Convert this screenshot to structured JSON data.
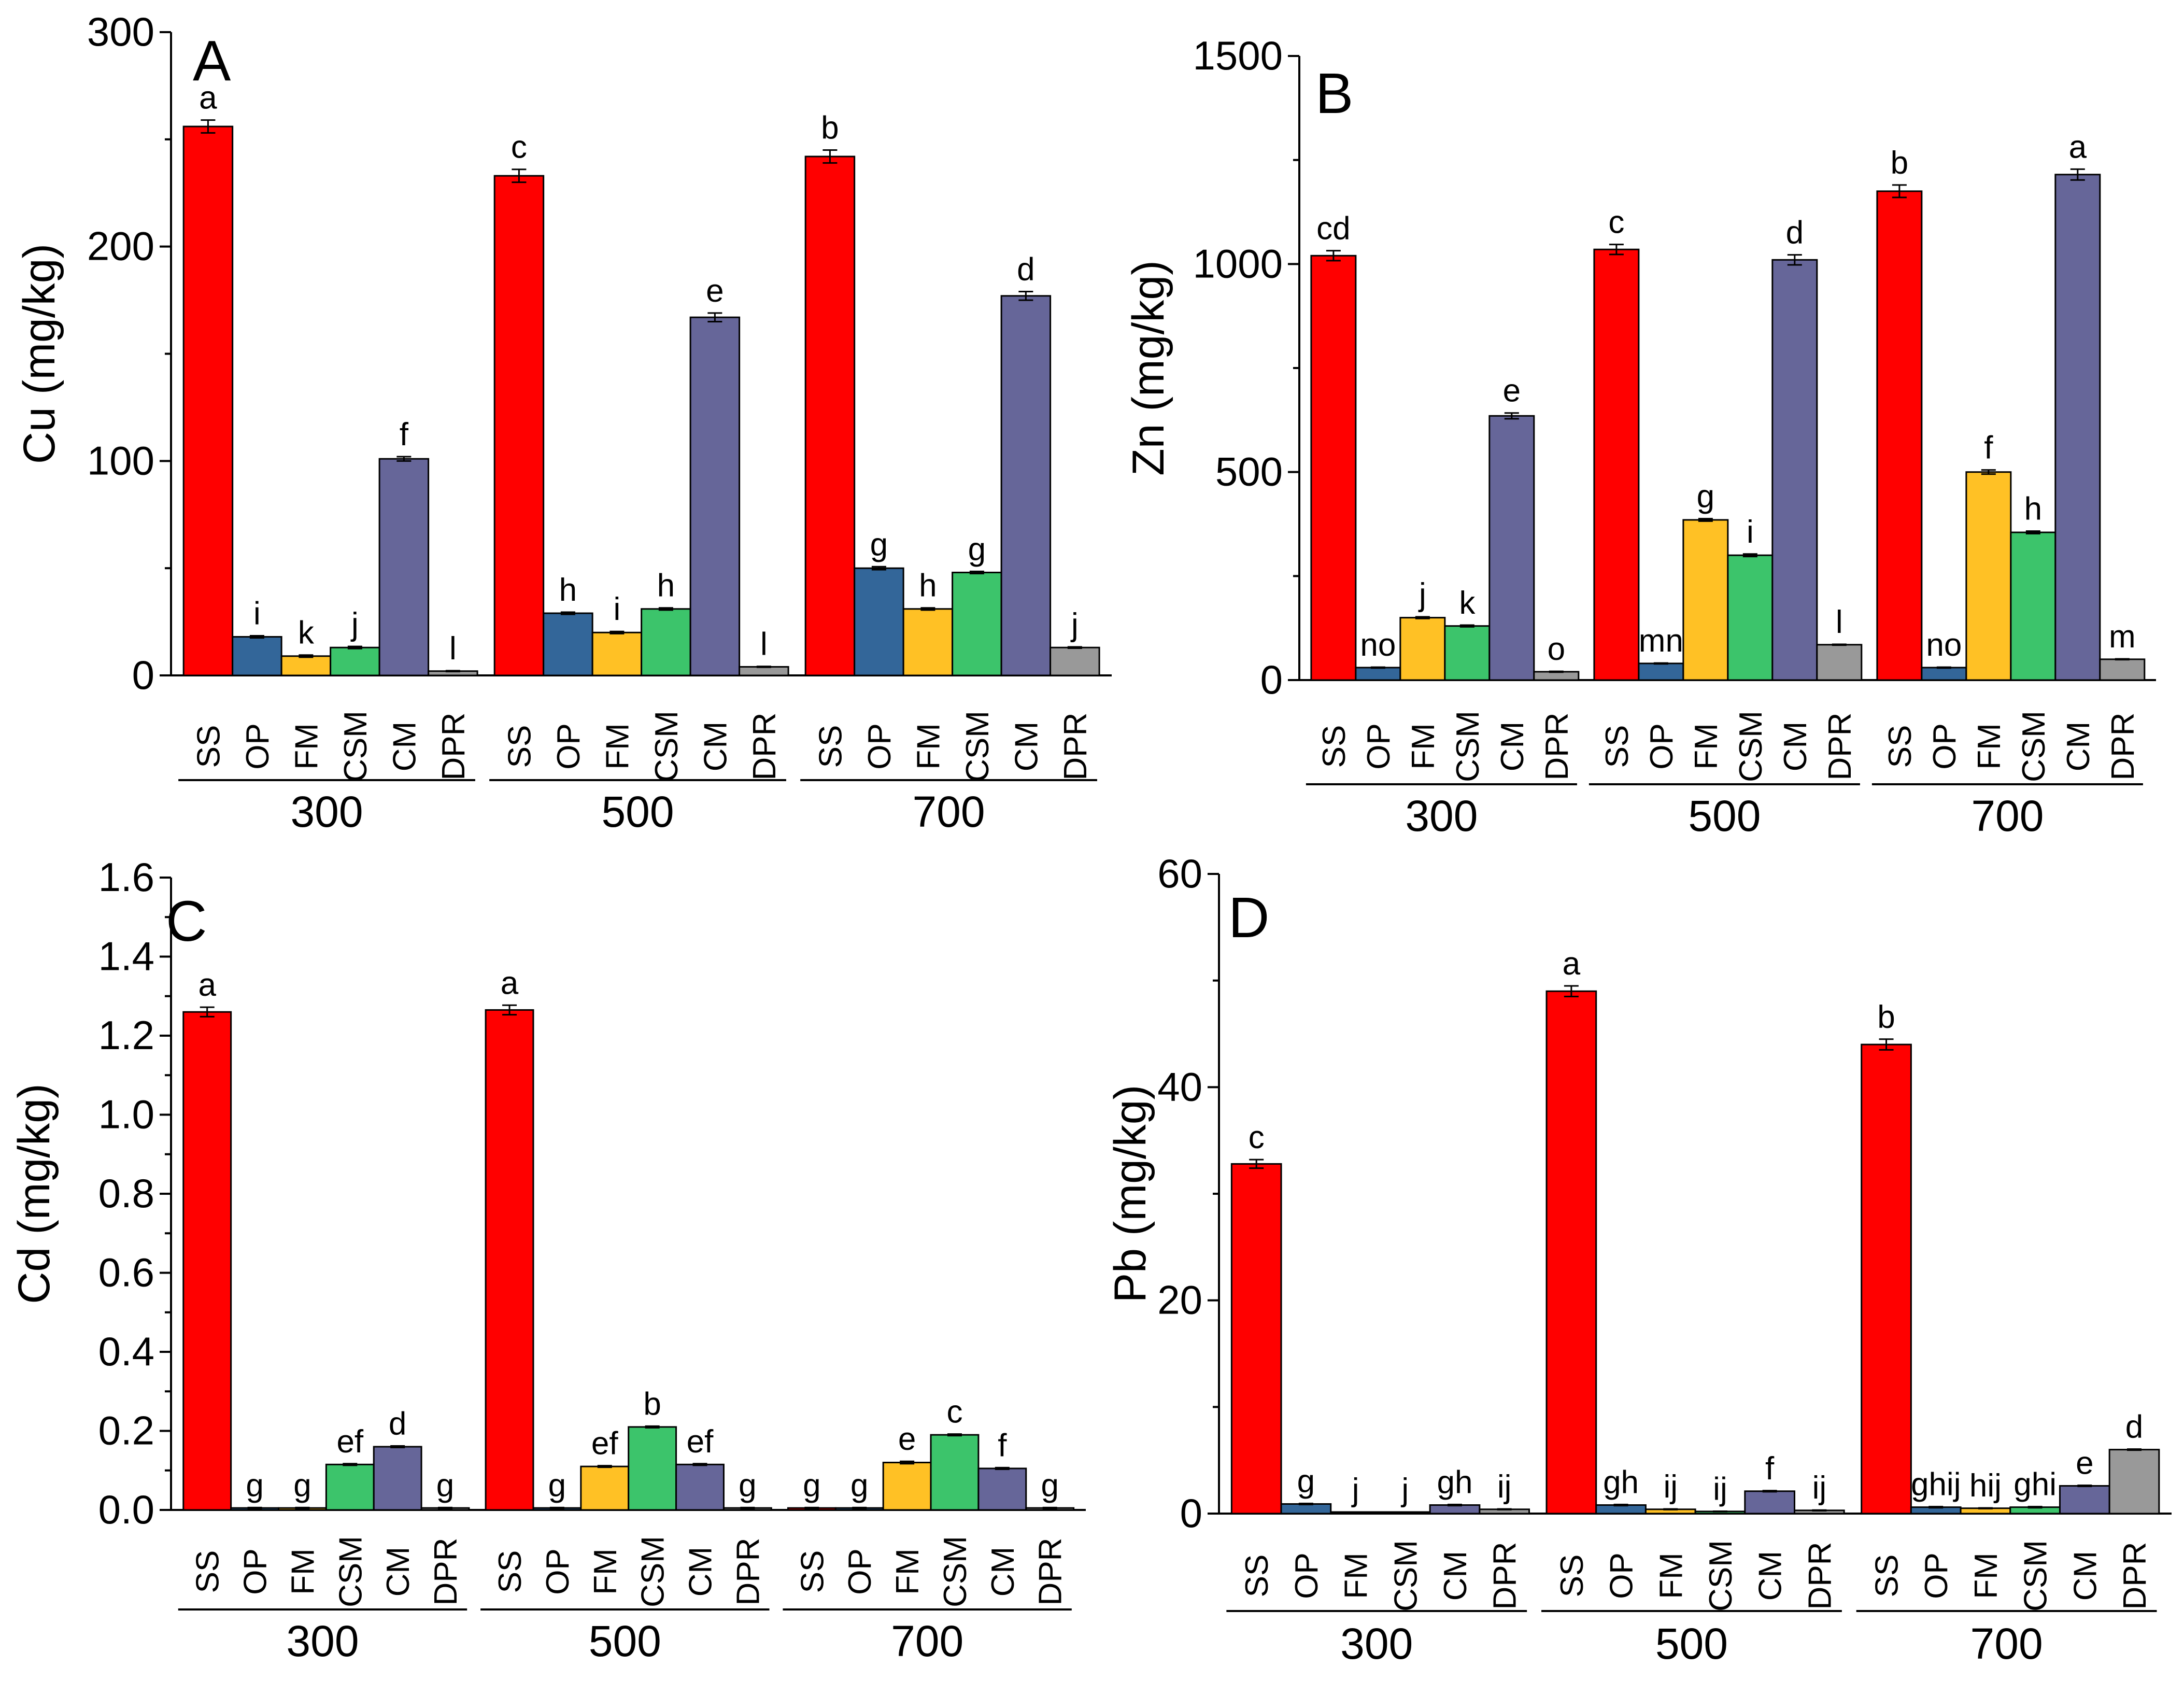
{
  "colors": {
    "SS": "#ff0000",
    "OP": "#336699",
    "FM": "#ffc125",
    "CSM": "#3cc46b",
    "CM": "#666699",
    "DPR": "#999999"
  },
  "categories": [
    "SS",
    "OP",
    "FM",
    "CSM",
    "CM",
    "DPR"
  ],
  "groups": [
    "300",
    "500",
    "700"
  ],
  "chart_data": [
    {
      "id": "A",
      "type": "bar",
      "panel_label": "A",
      "ylabel": "Cu (mg/kg)",
      "ylim": [
        0,
        300
      ],
      "yticks": [
        0,
        100,
        200,
        300
      ],
      "ytick_labels": [
        "0",
        "100",
        "200",
        "300"
      ],
      "series": [
        {
          "group": "300",
          "values": [
            256,
            18,
            9,
            13,
            101,
            2
          ],
          "errors": [
            3,
            0.5,
            0.5,
            0.5,
            1,
            0.2
          ],
          "letters": [
            "a",
            "i",
            "k",
            "j",
            "f",
            "l"
          ]
        },
        {
          "group": "500",
          "values": [
            233,
            29,
            20,
            31,
            167,
            4
          ],
          "errors": [
            3,
            0.5,
            0.5,
            0.5,
            2,
            0.2
          ],
          "letters": [
            "c",
            "h",
            "i",
            "h",
            "e",
            "l"
          ]
        },
        {
          "group": "700",
          "values": [
            242,
            50,
            31,
            48,
            177,
            13
          ],
          "errors": [
            3,
            0.7,
            0.5,
            0.5,
            2,
            0.3
          ],
          "letters": [
            "b",
            "g",
            "h",
            "g",
            "d",
            "j"
          ]
        }
      ]
    },
    {
      "id": "B",
      "type": "bar",
      "panel_label": "B",
      "ylabel": "Zn (mg/kg)",
      "ylim": [
        0,
        1500
      ],
      "yticks": [
        0,
        500,
        1000,
        1500
      ],
      "ytick_labels": [
        "0",
        "500",
        "1000",
        "1500"
      ],
      "series": [
        {
          "group": "300",
          "values": [
            1020,
            30,
            150,
            130,
            635,
            20
          ],
          "errors": [
            12,
            1,
            2,
            2,
            7,
            1
          ],
          "letters": [
            "cd",
            "no",
            "j",
            "k",
            "e",
            "o"
          ]
        },
        {
          "group": "500",
          "values": [
            1035,
            40,
            385,
            300,
            1010,
            85
          ],
          "errors": [
            12,
            1,
            3,
            3,
            12,
            1
          ],
          "letters": [
            "c",
            "mn",
            "g",
            "i",
            "d",
            "l"
          ]
        },
        {
          "group": "700",
          "values": [
            1175,
            30,
            500,
            355,
            1215,
            50
          ],
          "errors": [
            15,
            1,
            5,
            3,
            13,
            1
          ],
          "letters": [
            "b",
            "no",
            "f",
            "h",
            "a",
            "m"
          ]
        }
      ]
    },
    {
      "id": "C",
      "type": "bar",
      "panel_label": "C",
      "ylabel": "Cd (mg/kg)",
      "ylim": [
        0,
        1.6
      ],
      "yticks": [
        0,
        0.2,
        0.4,
        0.6,
        0.8,
        1.0,
        1.2,
        1.4,
        1.6
      ],
      "ytick_labels": [
        "0.0",
        "0.2",
        "0.4",
        "0.6",
        "0.8",
        "1.0",
        "1.2",
        "1.4",
        "1.6"
      ],
      "series": [
        {
          "group": "300",
          "values": [
            1.26,
            0.005,
            0.005,
            0.115,
            0.16,
            0.005
          ],
          "errors": [
            0.012,
            0.001,
            0.001,
            0.002,
            0.002,
            0.001
          ],
          "letters": [
            "a",
            "g",
            "g",
            "ef",
            "d",
            "g"
          ]
        },
        {
          "group": "500",
          "values": [
            1.265,
            0.005,
            0.11,
            0.21,
            0.115,
            0.005
          ],
          "errors": [
            0.012,
            0.001,
            0.002,
            0.002,
            0.002,
            0.001
          ],
          "letters": [
            "a",
            "g",
            "ef",
            "b",
            "ef",
            "g"
          ]
        },
        {
          "group": "700",
          "values": [
            0.005,
            0.005,
            0.12,
            0.19,
            0.105,
            0.005
          ],
          "errors": [
            0.001,
            0.001,
            0.003,
            0.002,
            0.002,
            0.001
          ],
          "letters": [
            "g",
            "g",
            "e",
            "c",
            "f",
            "g"
          ]
        }
      ]
    },
    {
      "id": "D",
      "type": "bar",
      "panel_label": "D",
      "ylabel": "Pb (mg/kg)",
      "ylim": [
        0,
        60
      ],
      "yticks": [
        0,
        20,
        40,
        60
      ],
      "ytick_labels": [
        "0",
        "20",
        "40",
        "60"
      ],
      "series": [
        {
          "group": "300",
          "values": [
            32.8,
            0.9,
            0.1,
            0.1,
            0.8,
            0.4
          ],
          "errors": [
            0.4,
            0.05,
            0.02,
            0.02,
            0.05,
            0.03
          ],
          "letters": [
            "c",
            "g",
            "j",
            "j",
            "gh",
            "ij"
          ]
        },
        {
          "group": "500",
          "values": [
            49,
            0.8,
            0.4,
            0.2,
            2.1,
            0.3
          ],
          "errors": [
            0.5,
            0.05,
            0.03,
            0.02,
            0.05,
            0.03
          ],
          "letters": [
            "a",
            "gh",
            "ij",
            "ij",
            "f",
            "ij"
          ]
        },
        {
          "group": "700",
          "values": [
            44,
            0.6,
            0.5,
            0.6,
            2.6,
            6
          ],
          "errors": [
            0.5,
            0.05,
            0.03,
            0.05,
            0.05,
            0.05
          ],
          "letters": [
            "b",
            "ghij",
            "hij",
            "ghi",
            "e",
            "d"
          ]
        }
      ]
    }
  ]
}
